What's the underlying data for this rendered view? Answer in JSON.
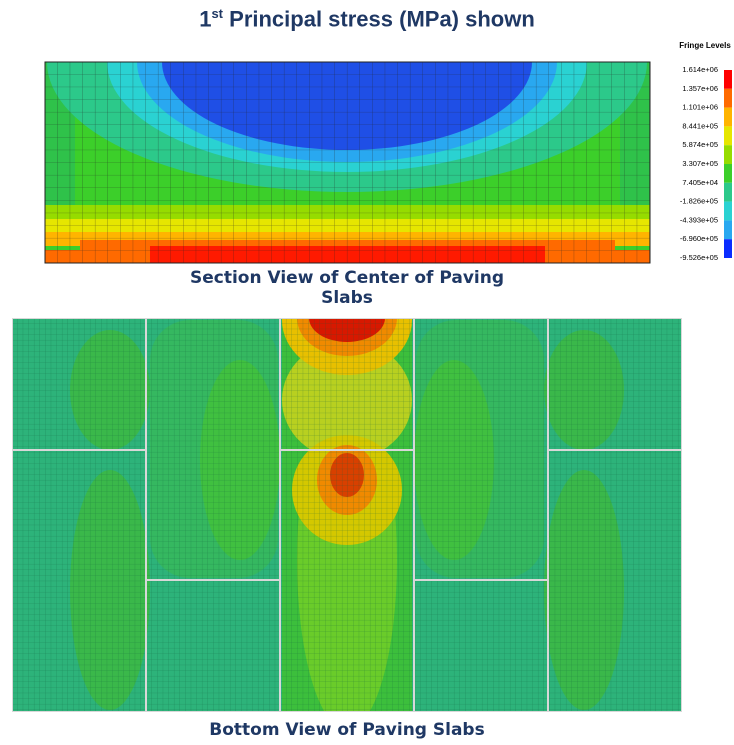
{
  "title": {
    "number": "1",
    "superscript": "st",
    "text": "Principal stress (MPa) shown"
  },
  "legend": {
    "title": "Fringe Levels",
    "levels": [
      "1.614e+06",
      "1.357e+06",
      "1.101e+06",
      "8.441e+05",
      "5.874e+05",
      "3.307e+05",
      "7.405e+04",
      "-1.826e+05",
      "-4.393e+05",
      "-6.960e+05",
      "-9.526e+05"
    ],
    "colors": [
      "#ff0000",
      "#ff6a00",
      "#ffb400",
      "#e6e600",
      "#96dc00",
      "#3ccf2a",
      "#2cc98a",
      "#2ad2d2",
      "#29a8f0",
      "#0a2cff"
    ]
  },
  "captions": {
    "section": "Section View of Center of Paving Slabs",
    "bottom": "Bottom View of Paving Slabs"
  }
}
